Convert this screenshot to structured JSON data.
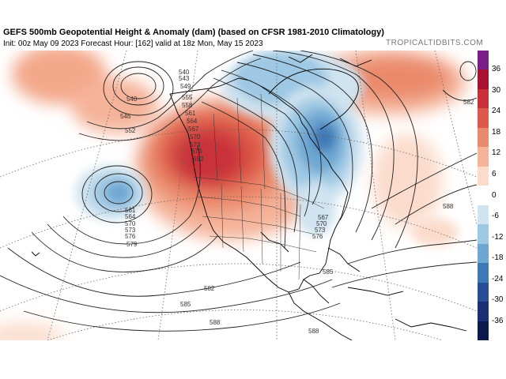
{
  "header": {
    "title": "GEFS 500mb Geopotential Height & Anomaly (dam) (based on CFSR 1981-2010 Climatology)",
    "subtitle": "Init: 00z May 09 2023   Forecast Hour: [162]   valid at 18z Mon, May 15 2023",
    "brand": "TROPICALTIDBITS.COM"
  },
  "colorbar": {
    "ticks": [
      "36",
      "30",
      "24",
      "18",
      "12",
      "6",
      "0",
      "-6",
      "-12",
      "-18",
      "-24",
      "-30",
      "-36"
    ],
    "colors": [
      "#7a1f8a",
      "#a6122f",
      "#c9303a",
      "#dd5a4a",
      "#ea8a6c",
      "#f5b39a",
      "#fbdccc",
      "#ffffff",
      "#cfe3f0",
      "#9ec8e3",
      "#6ea7d2",
      "#3f79b5",
      "#274e94",
      "#1c2f74",
      "#0b1a4a"
    ]
  },
  "contour_labels": [
    "540",
    "543",
    "546",
    "549",
    "552",
    "555",
    "558",
    "561",
    "564",
    "567",
    "570",
    "573",
    "576",
    "579",
    "582",
    "585",
    "588"
  ],
  "map_labels": {
    "c540": "540",
    "c543": "543",
    "c546": "546",
    "c549": "549",
    "c552": "552",
    "c555": "555",
    "c558": "558",
    "c561": "561",
    "c564": "564",
    "c567": "567",
    "c570": "570",
    "c573": "573",
    "c576": "576",
    "c579": "579",
    "c582a": "582",
    "c582b": "582",
    "c582c": "582",
    "c585a": "585",
    "c585b": "585",
    "c588a": "588",
    "c588b": "588",
    "c588c": "588",
    "ne576": "576",
    "ne573": "573",
    "ne570": "570",
    "ne567": "567"
  }
}
